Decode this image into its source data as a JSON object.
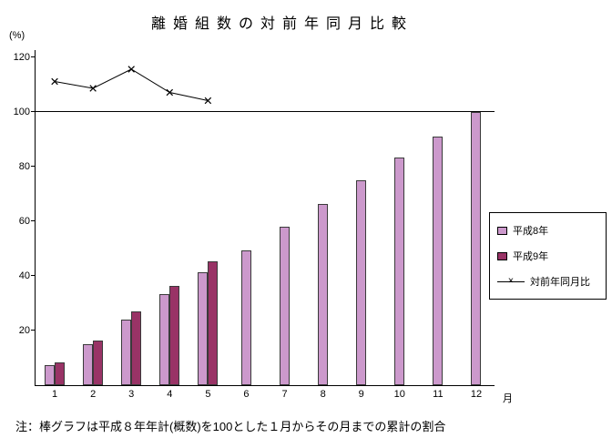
{
  "title": "離婚組数の対前年同月比較",
  "y_axis_unit": "(%)",
  "x_axis_unit": "月",
  "note": "注：棒グラフは平成８年年計(概数)を100とした１月からその月までの累計の割合",
  "legend": [
    {
      "label": "平成8年",
      "type": "bar",
      "color": "#CC99CC"
    },
    {
      "label": "平成9年",
      "type": "bar",
      "color": "#993366"
    },
    {
      "label": "対前年同月比",
      "type": "line",
      "color": "#000000"
    }
  ],
  "chart_data": {
    "type": "bar",
    "title": "離婚組数の対前年同月比較",
    "xlabel": "月",
    "ylabel": "(%)",
    "categories": [
      1,
      2,
      3,
      4,
      5,
      6,
      7,
      8,
      9,
      10,
      11,
      12
    ],
    "series": [
      {
        "name": "平成8年",
        "type": "bar",
        "color": "#CC99CC",
        "values": [
          7.5,
          15,
          24,
          33.5,
          41.5,
          49.5,
          58,
          66.5,
          75,
          83.5,
          91,
          100
        ]
      },
      {
        "name": "平成9年",
        "type": "bar",
        "color": "#993366",
        "values": [
          8.5,
          16.5,
          27,
          36.5,
          45.5,
          null,
          null,
          null,
          null,
          null,
          null,
          null
        ]
      },
      {
        "name": "対前年同月比",
        "type": "line",
        "color": "#000000",
        "marker": "x",
        "values": [
          111.5,
          109,
          116,
          107.5,
          104.5,
          null,
          null,
          null,
          null,
          null,
          null,
          null
        ]
      }
    ],
    "ylim": [
      0,
      123
    ],
    "yticks": [
      20,
      40,
      60,
      80,
      100,
      120
    ],
    "reference_line": 100,
    "grid": false,
    "legend_position": "right"
  }
}
